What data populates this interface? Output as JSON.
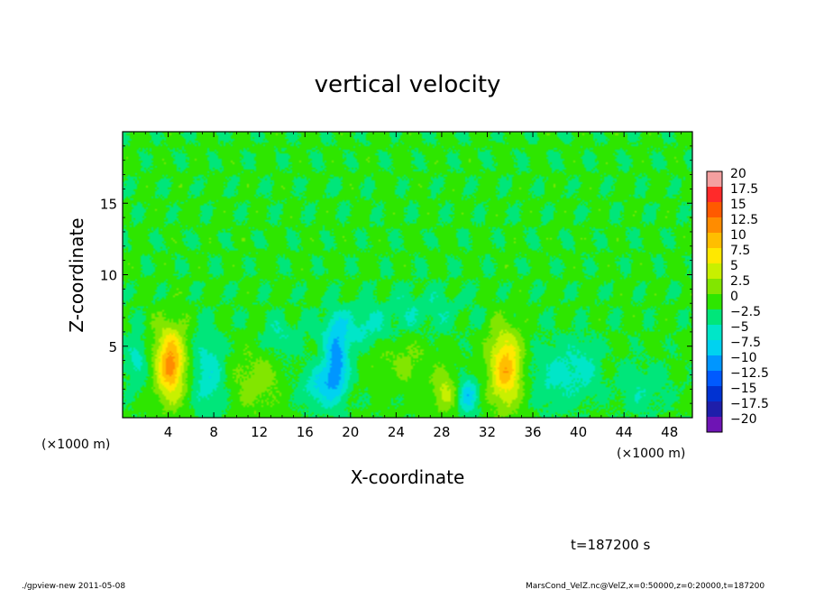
{
  "chart_data": {
    "type": "heatmap",
    "title": "vertical velocity",
    "xlabel": "X-coordinate",
    "ylabel": "Z-coordinate",
    "x_unit_left": "(×1000 m)",
    "x_unit_right": "(×1000 m)",
    "xlim": [
      0,
      50
    ],
    "ylim": [
      0,
      20
    ],
    "x_ticks": [
      4,
      8,
      12,
      16,
      20,
      24,
      28,
      32,
      36,
      40,
      44,
      48
    ],
    "x_tick_labels": [
      "4",
      "8",
      "12",
      "16",
      "20",
      "24",
      "28",
      "32",
      "36",
      "40",
      "44",
      "48"
    ],
    "y_ticks": [
      5,
      10,
      15
    ],
    "y_tick_labels": [
      "5",
      "10",
      "15"
    ],
    "colorbar": {
      "levels": [
        20,
        17.5,
        15,
        12.5,
        10,
        7.5,
        5,
        2.5,
        0,
        -2.5,
        -5,
        -7.5,
        -10,
        -12.5,
        -15,
        -17.5,
        -20
      ],
      "labels": [
        "20",
        "17.5",
        "15",
        "12.5",
        "10",
        "7.5",
        "5",
        "2.5",
        "0",
        "−2.5",
        "−5",
        "−7.5",
        "−10",
        "−12.5",
        "−15",
        "−17.5",
        "−20"
      ],
      "colors": [
        "#f4a0a0",
        "#ff2a2a",
        "#ff5a00",
        "#ff8c00",
        "#ffbe00",
        "#ffe800",
        "#c8f000",
        "#82e600",
        "#2ee600",
        "#00e67a",
        "#00e6c8",
        "#00d2f0",
        "#0096ff",
        "#005aff",
        "#0032d2",
        "#1e1eaa",
        "#6e14b4"
      ]
    },
    "background_value": 0.5,
    "features": [
      {
        "x": 4.2,
        "z": 3.8,
        "value": 13,
        "sx": 0.9,
        "sz": 1.8
      },
      {
        "x": 33.6,
        "z": 3.5,
        "value": 11,
        "sx": 1.0,
        "sz": 1.9
      },
      {
        "x": 18.8,
        "z": 4.0,
        "value": -9,
        "sx": 0.7,
        "sz": 1.6
      },
      {
        "x": 20.5,
        "z": 6.3,
        "value": -4,
        "sx": 2.4,
        "sz": 1.0
      },
      {
        "x": 17.5,
        "z": 2.2,
        "value": -6,
        "sx": 1.2,
        "sz": 1.0
      },
      {
        "x": 7.5,
        "z": 3.0,
        "value": -5,
        "sx": 0.9,
        "sz": 2.0
      },
      {
        "x": 1.2,
        "z": 4.0,
        "value": -4,
        "sx": 0.6,
        "sz": 1.3
      },
      {
        "x": 30.3,
        "z": 1.5,
        "value": -7,
        "sx": 0.6,
        "sz": 0.9
      },
      {
        "x": 28.3,
        "z": 1.8,
        "value": 5,
        "sx": 0.8,
        "sz": 1.0
      },
      {
        "x": 11.8,
        "z": 2.5,
        "value": 3.5,
        "sx": 1.4,
        "sz": 1.6
      },
      {
        "x": 38.0,
        "z": 3.0,
        "value": -3.5,
        "sx": 1.5,
        "sz": 1.6
      },
      {
        "x": 40.5,
        "z": 3.5,
        "value": -3,
        "sx": 1.0,
        "sz": 1.4
      },
      {
        "x": 24.5,
        "z": 4.2,
        "value": 2.5,
        "sx": 2.0,
        "sz": 1.5
      },
      {
        "x": 45.5,
        "z": 2.0,
        "value": -2.5,
        "sx": 1.5,
        "sz": 1.2
      },
      {
        "x": 13.8,
        "z": 5.6,
        "value": -3,
        "sx": 1.0,
        "sz": 1.0
      },
      {
        "x": 26.5,
        "z": 7.5,
        "value": -2.5,
        "sx": 2.5,
        "sz": 1.2
      }
    ],
    "time_label": "t=187200 s"
  },
  "footer": {
    "program": "./gpview-new   2011-05-08",
    "source": "MarsCond_VelZ.nc@VelZ,x=0:50000,z=0:20000,t=187200"
  }
}
